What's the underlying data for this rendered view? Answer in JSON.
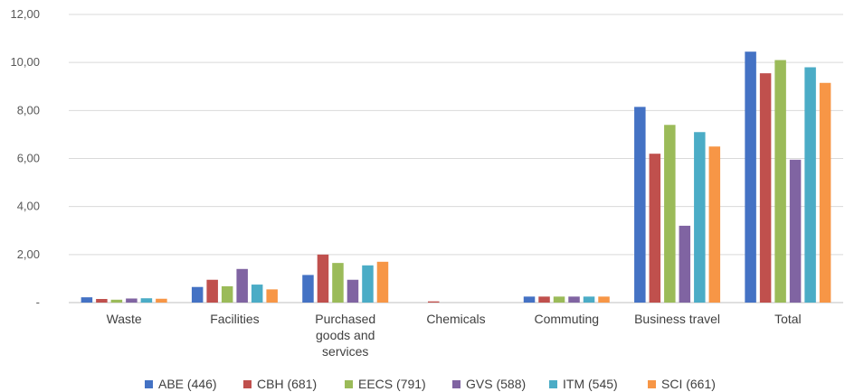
{
  "chart_data": {
    "type": "bar",
    "title": "",
    "xlabel": "",
    "ylabel": "",
    "ylim": [
      0,
      12
    ],
    "yticks": [
      0,
      2,
      4,
      6,
      8,
      10,
      12
    ],
    "ytick_labels": [
      "-",
      "2,00",
      "4,00",
      "6,00",
      "8,00",
      "10,00",
      "12,00"
    ],
    "grid": true,
    "legend_position": "bottom",
    "categories": [
      [
        "Waste"
      ],
      [
        "Facilities"
      ],
      [
        "Purchased",
        "goods and",
        "services"
      ],
      [
        "Chemicals"
      ],
      [
        "Commuting"
      ],
      [
        "Business travel"
      ],
      [
        "Total"
      ]
    ],
    "series": [
      {
        "name": "ABE (446)",
        "color": "#4472C4",
        "values": [
          0.22,
          0.65,
          1.15,
          0.0,
          0.25,
          8.15,
          10.45
        ]
      },
      {
        "name": "CBH (681)",
        "color": "#C0504D",
        "values": [
          0.15,
          0.95,
          2.0,
          0.05,
          0.25,
          6.2,
          9.55
        ]
      },
      {
        "name": "EECS (791)",
        "color": "#9BBB59",
        "values": [
          0.12,
          0.68,
          1.65,
          0.0,
          0.25,
          7.4,
          10.1
        ]
      },
      {
        "name": "GVS (588)",
        "color": "#8064A2",
        "values": [
          0.17,
          1.4,
          0.95,
          0.0,
          0.25,
          3.2,
          5.95
        ]
      },
      {
        "name": "ITM (545)",
        "color": "#4BACC6",
        "values": [
          0.18,
          0.75,
          1.55,
          0.0,
          0.25,
          7.1,
          9.8
        ]
      },
      {
        "name": "SCI (661)",
        "color": "#F79646",
        "values": [
          0.16,
          0.55,
          1.7,
          0.0,
          0.25,
          6.5,
          9.15
        ]
      }
    ]
  }
}
